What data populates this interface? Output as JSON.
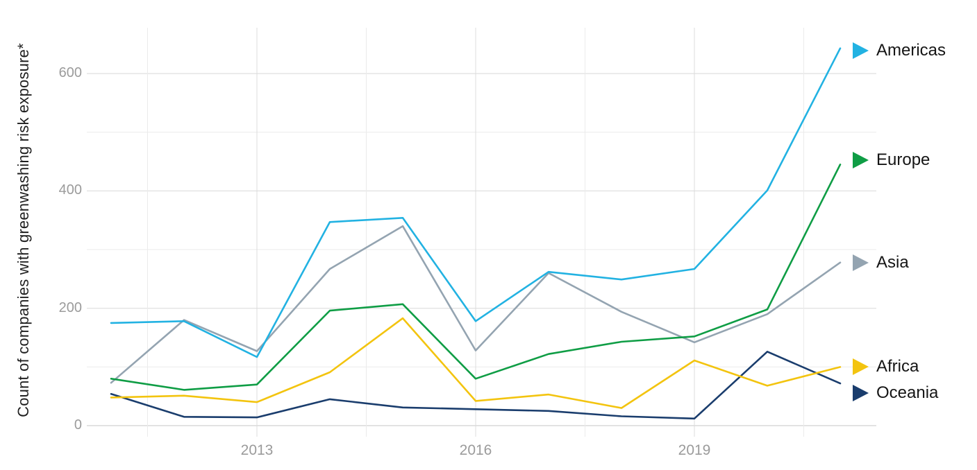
{
  "page": {
    "background": "#ffffff"
  },
  "y_axis": {
    "title": "Count of companies with greenwashing risk exposure*",
    "tick_labels": [
      "0",
      "200",
      "400",
      "600"
    ]
  },
  "x_axis": {
    "tick_labels": [
      "2013",
      "2016",
      "2019"
    ]
  },
  "chart_data": {
    "type": "line",
    "title": "",
    "ylabel": "Count of companies with greenwashing risk exposure*",
    "xlabel": "",
    "x": [
      2011,
      2012,
      2013,
      2014,
      2015,
      2016,
      2017,
      2018,
      2019,
      2020,
      2021
    ],
    "x_ticks": [
      {
        "year": 2013,
        "label": "2013"
      },
      {
        "year": 2016,
        "label": "2016"
      },
      {
        "year": 2019,
        "label": "2019"
      }
    ],
    "x_minor_gridline_years": [
      2011.5,
      2014.5,
      2017.5,
      2020.5
    ],
    "ylim": [
      0,
      650
    ],
    "y_ticks": [
      0,
      200,
      400,
      600
    ],
    "y_gridline_step": 100,
    "grid": "on",
    "legend_position": "right-direct-labels",
    "legend_marker": "right-arrow-triangle",
    "series": [
      {
        "name": "Americas",
        "color": "#22b2e2",
        "values": [
          175,
          178,
          117,
          347,
          354,
          178,
          262,
          249,
          267,
          401,
          643
        ]
      },
      {
        "name": "Europe",
        "color": "#0f9d45",
        "values": [
          80,
          61,
          70,
          196,
          207,
          80,
          122,
          143,
          152,
          198,
          445
        ]
      },
      {
        "name": "Asia",
        "color": "#94a4b1",
        "values": [
          73,
          180,
          127,
          267,
          340,
          128,
          260,
          194,
          142,
          190,
          278
        ]
      },
      {
        "name": "Africa",
        "color": "#f3c40f",
        "values": [
          48,
          51,
          40,
          91,
          183,
          42,
          53,
          30,
          111,
          68,
          100
        ]
      },
      {
        "name": "Oceania",
        "color": "#1a3d6d",
        "values": [
          54,
          15,
          14,
          45,
          31,
          28,
          25,
          16,
          12,
          126,
          72
        ]
      }
    ]
  }
}
